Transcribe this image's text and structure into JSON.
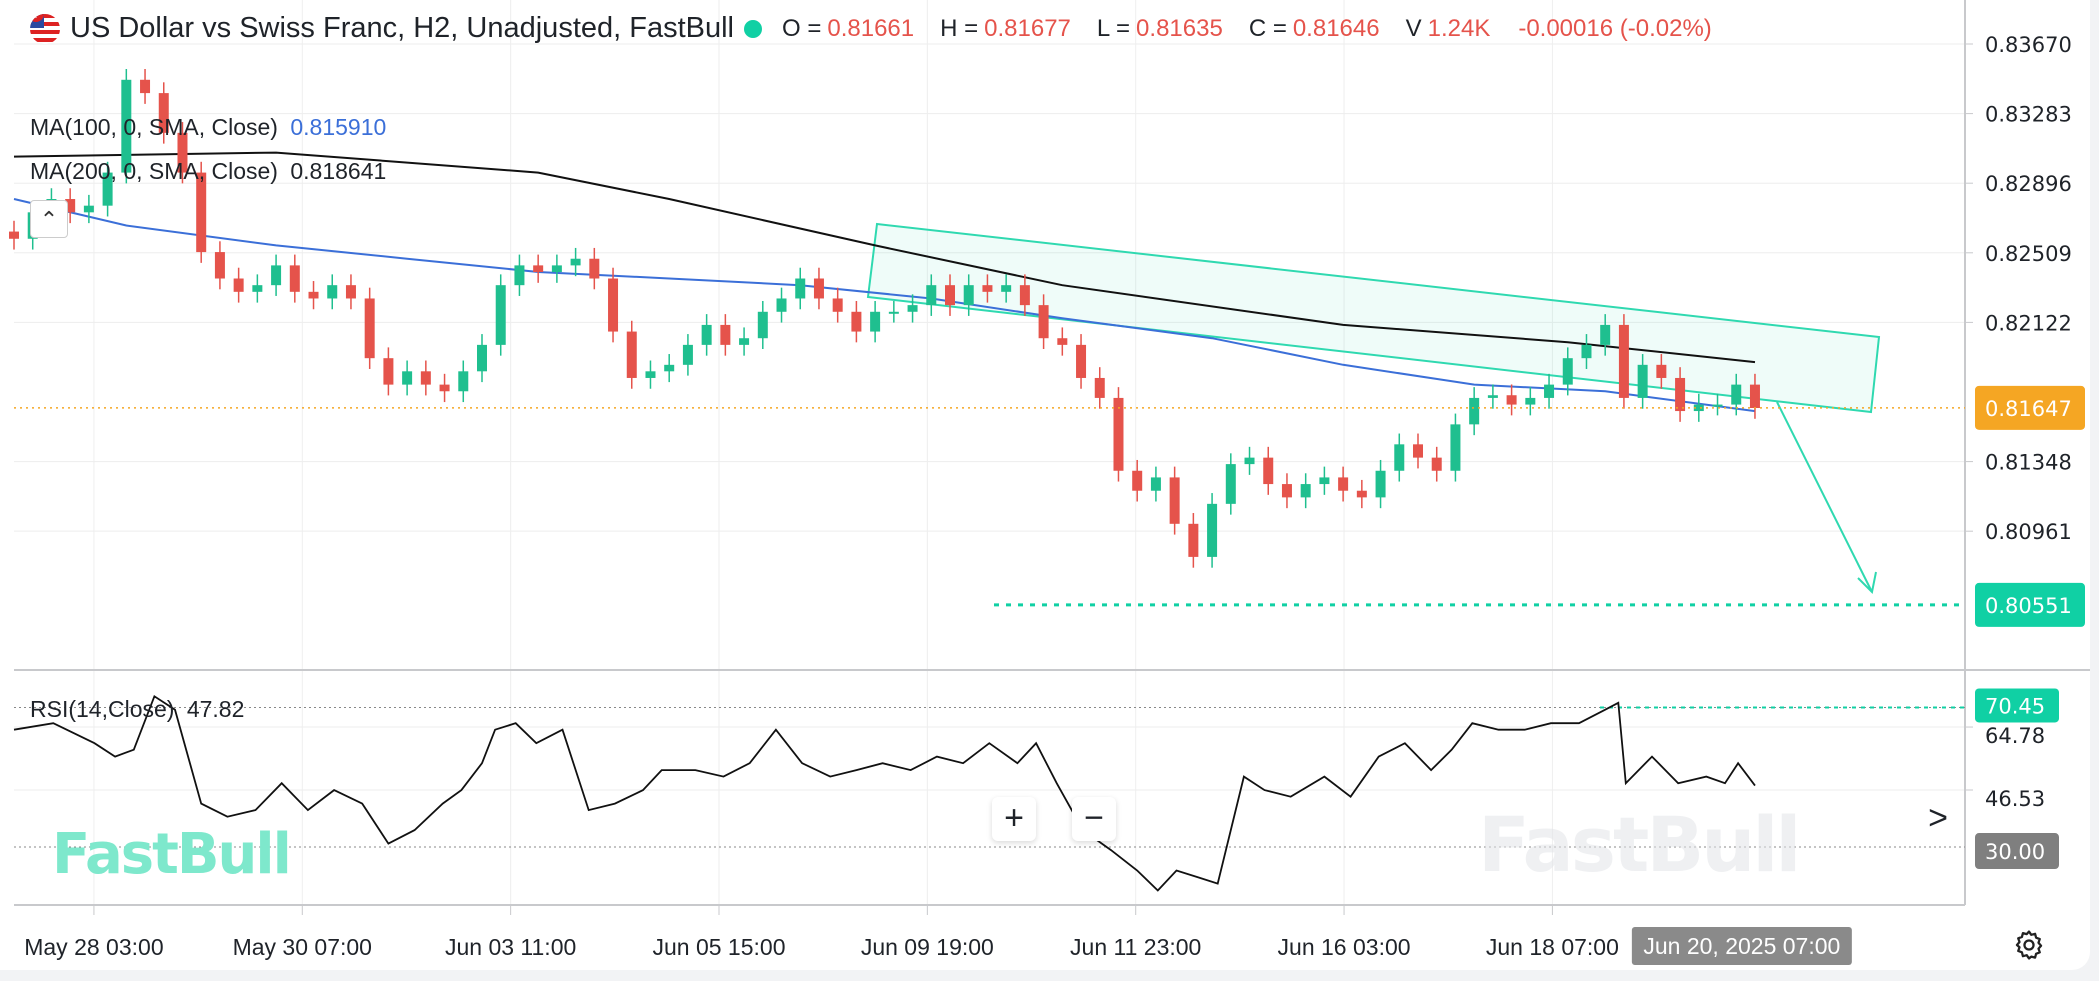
{
  "header": {
    "title": "US Dollar vs Swiss Franc, H2, Unadjusted, FastBull",
    "flag_icon": "us-ch-flag-icon",
    "status_dot_color": "#10d0a4",
    "ohlc": [
      {
        "key": "O =",
        "value": "0.81661"
      },
      {
        "key": "H =",
        "value": "0.81677"
      },
      {
        "key": "L =",
        "value": "0.81635"
      },
      {
        "key": "C =",
        "value": "0.81646"
      },
      {
        "key": "V",
        "value": "1.24K"
      }
    ],
    "change": "-0.00016 (-0.02%)"
  },
  "indicators": {
    "ma100": {
      "label": "MA(100, 0, SMA, Close)",
      "value": "0.815910",
      "color": "#3b6fd8"
    },
    "ma200": {
      "label": "MA(200, 0, SMA, Close)",
      "value": "0.818641",
      "color": "#111111"
    },
    "rsi": {
      "label": "RSI(14,Close)",
      "value": "47.82"
    }
  },
  "watermark": "FastBull",
  "controls": {
    "zoom_in": "+",
    "zoom_out": "−",
    "scroll_right": ">",
    "settings_icon": "gear-icon"
  },
  "colors": {
    "up": "#1fbf8f",
    "down": "#e5534b",
    "last_price": "#f5a623",
    "target": "#10d0a4",
    "channel": "#2fd9b0"
  },
  "chart_data": {
    "type": "candlestick",
    "timeframe": "H2",
    "price_ticks": [
      "0.83670",
      "0.83283",
      "0.82896",
      "0.82509",
      "0.82122",
      "0.81348",
      "0.80961"
    ],
    "last_price": "0.81647",
    "target_price": "0.80551",
    "rsi_ticks": [
      "64.78",
      "46.53"
    ],
    "rsi_levels": {
      "upper": "70.45",
      "lower": "30.00"
    },
    "time_ticks": [
      "May 28 03:00",
      "May 30 07:00",
      "Jun 03 11:00",
      "Jun 05 15:00",
      "Jun 09 19:00",
      "Jun 11 23:00",
      "Jun 16 03:00",
      "Jun 18 07:00"
    ],
    "crosshair_time": "Jun 20, 2025 07:00",
    "close": [
      0.82587,
      0.82734,
      0.82808,
      0.82734,
      0.82771,
      0.82955,
      0.83471,
      0.83397,
      0.83176,
      0.82955,
      0.82513,
      0.82366,
      0.82292,
      0.82329,
      0.82439,
      0.82292,
      0.82255,
      0.82329,
      0.82255,
      0.81923,
      0.81776,
      0.8185,
      0.81776,
      0.81739,
      0.8185,
      0.81997,
      0.82329,
      0.82439,
      0.82402,
      0.82439,
      0.82476,
      0.82366,
      0.82071,
      0.81813,
      0.8185,
      0.81886,
      0.81997,
      0.82108,
      0.81997,
      0.82034,
      0.82181,
      0.82255,
      0.82366,
      0.82255,
      0.82181,
      0.82071,
      0.82181,
      0.82181,
      0.82218,
      0.82329,
      0.82218,
      0.82329,
      0.82292,
      0.82329,
      0.82218,
      0.82034,
      0.81997,
      0.81813,
      0.81702,
      0.81297,
      0.81186,
      0.8126,
      0.81002,
      0.80818,
      0.81113,
      0.81334,
      0.8137,
      0.81223,
      0.81149,
      0.81223,
      0.8126,
      0.81186,
      0.81149,
      0.81297,
      0.81444,
      0.8137,
      0.81297,
      0.81555,
      0.81702,
      0.81717,
      0.81665,
      0.81702,
      0.81776,
      0.81923,
      0.81997,
      0.82108,
      0.81702,
      0.81886,
      0.81813,
      0.81629,
      0.81665,
      0.81665,
      0.81776,
      0.81646
    ],
    "ma100": [
      [
        0,
        0.82808
      ],
      [
        6,
        0.82661
      ],
      [
        14,
        0.8255
      ],
      [
        21,
        0.82476
      ],
      [
        28,
        0.82402
      ],
      [
        35,
        0.82366
      ],
      [
        42,
        0.82329
      ],
      [
        49,
        0.82255
      ],
      [
        56,
        0.82145
      ],
      [
        64,
        0.82034
      ],
      [
        71,
        0.81886
      ],
      [
        78,
        0.81776
      ],
      [
        85,
        0.81739
      ],
      [
        93,
        0.81629
      ]
    ],
    "ma200": [
      [
        0,
        0.83044
      ],
      [
        14,
        0.83066
      ],
      [
        28,
        0.82955
      ],
      [
        35,
        0.82808
      ],
      [
        46,
        0.8255
      ],
      [
        56,
        0.82329
      ],
      [
        71,
        0.82108
      ],
      [
        83,
        0.82012
      ],
      [
        93,
        0.81901
      ]
    ],
    "rsi": [
      [
        0,
        64.0
      ],
      [
        2.1,
        65.9
      ],
      [
        4.3,
        60.1
      ],
      [
        5.4,
        56.2
      ],
      [
        6.4,
        58.2
      ],
      [
        7.5,
        73.7
      ],
      [
        8.6,
        69.8
      ],
      [
        10,
        42.6
      ],
      [
        11.4,
        38.8
      ],
      [
        12.9,
        40.7
      ],
      [
        14.3,
        48.5
      ],
      [
        15.7,
        40.7
      ],
      [
        17.1,
        46.5
      ],
      [
        18.6,
        42.6
      ],
      [
        20,
        31.0
      ],
      [
        21.4,
        34.9
      ],
      [
        22.9,
        42.6
      ],
      [
        23.9,
        46.5
      ],
      [
        25,
        54.3
      ],
      [
        25.7,
        64.0
      ],
      [
        26.8,
        65.9
      ],
      [
        27.9,
        60.1
      ],
      [
        29.3,
        64.0
      ],
      [
        30.7,
        40.7
      ],
      [
        32.1,
        42.6
      ],
      [
        33.6,
        46.5
      ],
      [
        34.6,
        52.3
      ],
      [
        36.4,
        52.3
      ],
      [
        37.9,
        50.4
      ],
      [
        39.3,
        54.3
      ],
      [
        40.7,
        64.0
      ],
      [
        42.1,
        54.3
      ],
      [
        43.6,
        50.4
      ],
      [
        45,
        52.3
      ],
      [
        46.4,
        54.3
      ],
      [
        47.9,
        52.3
      ],
      [
        49.3,
        56.2
      ],
      [
        50.7,
        54.3
      ],
      [
        52.1,
        60.1
      ],
      [
        53.6,
        54.3
      ],
      [
        54.6,
        60.1
      ],
      [
        55.7,
        48.5
      ],
      [
        57.1,
        34.9
      ],
      [
        58.6,
        29.1
      ],
      [
        60,
        23.2
      ],
      [
        61.1,
        17.4
      ],
      [
        62.1,
        23.2
      ],
      [
        63.2,
        21.3
      ],
      [
        64.3,
        19.4
      ],
      [
        65.7,
        50.4
      ],
      [
        66.8,
        46.5
      ],
      [
        68.2,
        44.6
      ],
      [
        70,
        50.4
      ],
      [
        71.4,
        44.6
      ],
      [
        72.9,
        56.2
      ],
      [
        74.3,
        60.1
      ],
      [
        75.7,
        52.3
      ],
      [
        76.8,
        58.2
      ],
      [
        77.9,
        65.9
      ],
      [
        79.3,
        64.0
      ],
      [
        80.7,
        64.0
      ],
      [
        82.1,
        65.9
      ],
      [
        83.6,
        65.9
      ],
      [
        85,
        69.8
      ],
      [
        85.7,
        71.8
      ],
      [
        86.1,
        48.5
      ],
      [
        87.5,
        56.2
      ],
      [
        88.9,
        48.5
      ],
      [
        90.4,
        50.4
      ],
      [
        91.4,
        48.5
      ],
      [
        92.1,
        54.3
      ],
      [
        93,
        47.8
      ]
    ]
  }
}
